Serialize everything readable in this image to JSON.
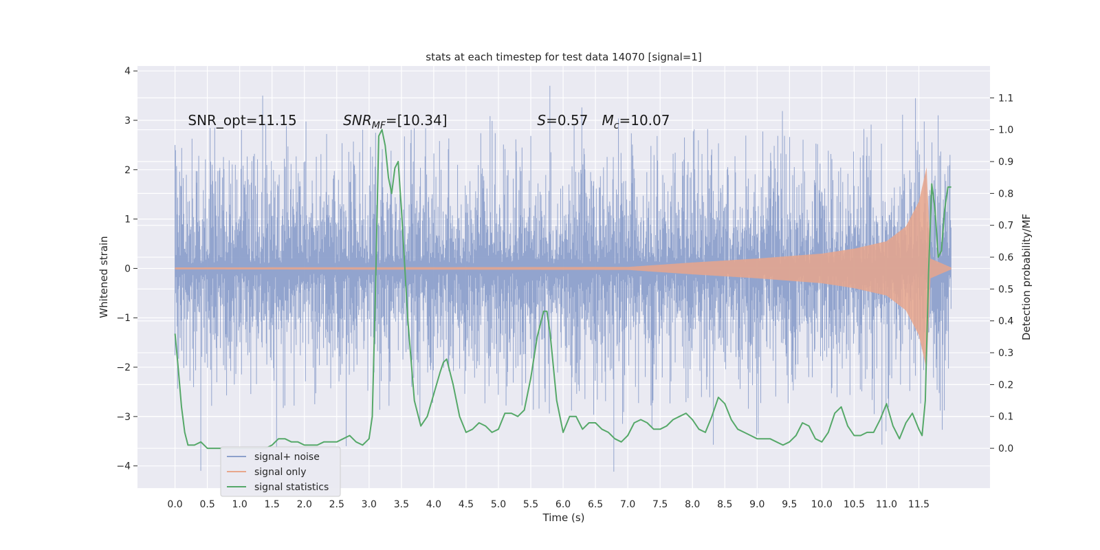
{
  "chart_data": {
    "type": "line",
    "title": "stats at each timestep for test data 14070 [signal=1]",
    "xlabel": "Time (s)",
    "ylabel": "Whitened strain",
    "ylabel_right": "Detection probability/MF",
    "xlim": [
      -0.58,
      12.6
    ],
    "ylim": [
      -4.45,
      4.1
    ],
    "ylim_right": [
      -0.125,
      1.2
    ],
    "x_ticks": [
      0.0,
      0.5,
      1.0,
      1.5,
      2.0,
      2.5,
      3.0,
      3.5,
      4.0,
      4.5,
      5.0,
      5.5,
      6.0,
      6.5,
      7.0,
      7.5,
      8.0,
      8.5,
      9.0,
      9.5,
      10.0,
      10.5,
      11.0,
      11.5
    ],
    "x_tick_labels": [
      "0.0",
      "0.5",
      "1.0",
      "1.5",
      "2.0",
      "2.5",
      "3.0",
      "3.5",
      "4.0",
      "4.5",
      "5.0",
      "5.5",
      "6.0",
      "6.5",
      "7.0",
      "7.5",
      "8.0",
      "8.5",
      "9.0",
      "9.5",
      "10.0",
      "10.5",
      "11.0",
      "11.5"
    ],
    "y_ticks": [
      -4,
      -3,
      -2,
      -1,
      0,
      1,
      2,
      3,
      4
    ],
    "y_tick_labels": [
      "−4",
      "−3",
      "−2",
      "−1",
      "0",
      "1",
      "2",
      "3",
      "4"
    ],
    "y_ticks_right": [
      0.0,
      0.1,
      0.2,
      0.3,
      0.4,
      0.5,
      0.6,
      0.7,
      0.8,
      0.9,
      1.0,
      1.1
    ],
    "y_tick_labels_right": [
      "0.0",
      "0.1",
      "0.2",
      "0.3",
      "0.4",
      "0.5",
      "0.6",
      "0.7",
      "0.8",
      "0.9",
      "1.0",
      "1.1"
    ],
    "grid": true,
    "legend_position": "lower-left",
    "annotations": [
      {
        "text": "SNR_opt=11.15",
        "x": 0.2,
        "y": 2.9
      },
      {
        "text": "SNR_MF=[10.34]",
        "x": 2.6,
        "y": 2.9
      },
      {
        "text": "S=0.57",
        "x": 5.6,
        "y": 2.9
      },
      {
        "text": "M_c=10.07",
        "x": 6.6,
        "y": 2.9
      }
    ],
    "series": [
      {
        "name": "signal+ noise",
        "axis": "left",
        "color": "#8da0cb",
        "x_range": [
          0.0,
          12.0
        ],
        "typical_amplitude": 1.0,
        "peaks": [
          {
            "x": 0.0,
            "y": 2.5
          },
          {
            "x": 0.4,
            "y": -4.1
          },
          {
            "x": 1.35,
            "y": 3.5
          },
          {
            "x": 2.65,
            "y": -3.6
          },
          {
            "x": 5.8,
            "y": 3.7
          },
          {
            "x": 9.0,
            "y": -3.4
          },
          {
            "x": 11.45,
            "y": 3.45
          },
          {
            "x": 11.8,
            "y": 3.1
          },
          {
            "x": 11.0,
            "y": -3.3
          }
        ]
      },
      {
        "name": "signal only",
        "axis": "left",
        "color": "#e8a68c",
        "x_range": [
          0.0,
          12.0
        ],
        "envelope": [
          {
            "x": 0.0,
            "y": 0.02
          },
          {
            "x": 7.0,
            "y": 0.03
          },
          {
            "x": 8.0,
            "y": 0.12
          },
          {
            "x": 9.0,
            "y": 0.2
          },
          {
            "x": 10.0,
            "y": 0.3
          },
          {
            "x": 10.5,
            "y": 0.4
          },
          {
            "x": 11.0,
            "y": 0.55
          },
          {
            "x": 11.3,
            "y": 0.85
          },
          {
            "x": 11.5,
            "y": 1.35
          },
          {
            "x": 11.62,
            "y": 2.05
          },
          {
            "x": 11.68,
            "y": 0.2
          },
          {
            "x": 12.0,
            "y": 0.02
          }
        ]
      },
      {
        "name": "signal statistics",
        "axis": "right",
        "color": "#55a868",
        "x": [
          0.0,
          0.05,
          0.1,
          0.15,
          0.2,
          0.3,
          0.4,
          0.5,
          0.6,
          0.7,
          0.8,
          0.9,
          1.0,
          1.1,
          1.2,
          1.3,
          1.4,
          1.5,
          1.6,
          1.7,
          1.8,
          1.9,
          2.0,
          2.1,
          2.2,
          2.3,
          2.4,
          2.5,
          2.6,
          2.7,
          2.8,
          2.9,
          3.0,
          3.05,
          3.1,
          3.15,
          3.2,
          3.25,
          3.3,
          3.35,
          3.4,
          3.45,
          3.5,
          3.6,
          3.7,
          3.8,
          3.9,
          4.0,
          4.1,
          4.15,
          4.2,
          4.3,
          4.4,
          4.5,
          4.6,
          4.7,
          4.8,
          4.9,
          5.0,
          5.1,
          5.2,
          5.3,
          5.4,
          5.5,
          5.6,
          5.7,
          5.75,
          5.8,
          5.9,
          6.0,
          6.1,
          6.2,
          6.3,
          6.4,
          6.5,
          6.6,
          6.7,
          6.8,
          6.9,
          7.0,
          7.1,
          7.2,
          7.3,
          7.4,
          7.5,
          7.6,
          7.7,
          7.8,
          7.9,
          8.0,
          8.1,
          8.2,
          8.3,
          8.4,
          8.5,
          8.6,
          8.7,
          8.8,
          8.9,
          9.0,
          9.1,
          9.2,
          9.3,
          9.4,
          9.5,
          9.6,
          9.7,
          9.8,
          9.9,
          10.0,
          10.1,
          10.2,
          10.3,
          10.4,
          10.5,
          10.6,
          10.7,
          10.8,
          10.9,
          11.0,
          11.1,
          11.2,
          11.3,
          11.4,
          11.5,
          11.55,
          11.6,
          11.65,
          11.7,
          11.75,
          11.8,
          11.85,
          11.9,
          11.95,
          12.0
        ],
        "y": [
          0.36,
          0.25,
          0.13,
          0.05,
          0.01,
          0.01,
          0.02,
          0.0,
          0.0,
          0.0,
          0.0,
          0.0,
          0.0,
          0.0,
          0.0,
          0.0,
          0.0,
          0.01,
          0.03,
          0.03,
          0.02,
          0.02,
          0.01,
          0.01,
          0.01,
          0.02,
          0.02,
          0.02,
          0.03,
          0.04,
          0.02,
          0.01,
          0.03,
          0.1,
          0.5,
          0.98,
          1.0,
          0.95,
          0.85,
          0.8,
          0.88,
          0.9,
          0.75,
          0.4,
          0.15,
          0.07,
          0.1,
          0.17,
          0.24,
          0.27,
          0.28,
          0.2,
          0.1,
          0.05,
          0.06,
          0.08,
          0.07,
          0.05,
          0.06,
          0.11,
          0.11,
          0.1,
          0.12,
          0.22,
          0.35,
          0.43,
          0.43,
          0.36,
          0.15,
          0.05,
          0.1,
          0.1,
          0.06,
          0.08,
          0.08,
          0.06,
          0.05,
          0.03,
          0.02,
          0.04,
          0.08,
          0.09,
          0.08,
          0.06,
          0.06,
          0.07,
          0.09,
          0.1,
          0.11,
          0.09,
          0.06,
          0.05,
          0.1,
          0.16,
          0.14,
          0.09,
          0.06,
          0.05,
          0.04,
          0.03,
          0.03,
          0.03,
          0.02,
          0.01,
          0.02,
          0.04,
          0.08,
          0.07,
          0.03,
          0.02,
          0.05,
          0.11,
          0.13,
          0.07,
          0.04,
          0.04,
          0.05,
          0.05,
          0.09,
          0.14,
          0.07,
          0.03,
          0.08,
          0.11,
          0.06,
          0.04,
          0.15,
          0.55,
          0.83,
          0.75,
          0.6,
          0.62,
          0.75,
          0.82,
          0.82
        ]
      }
    ]
  }
}
